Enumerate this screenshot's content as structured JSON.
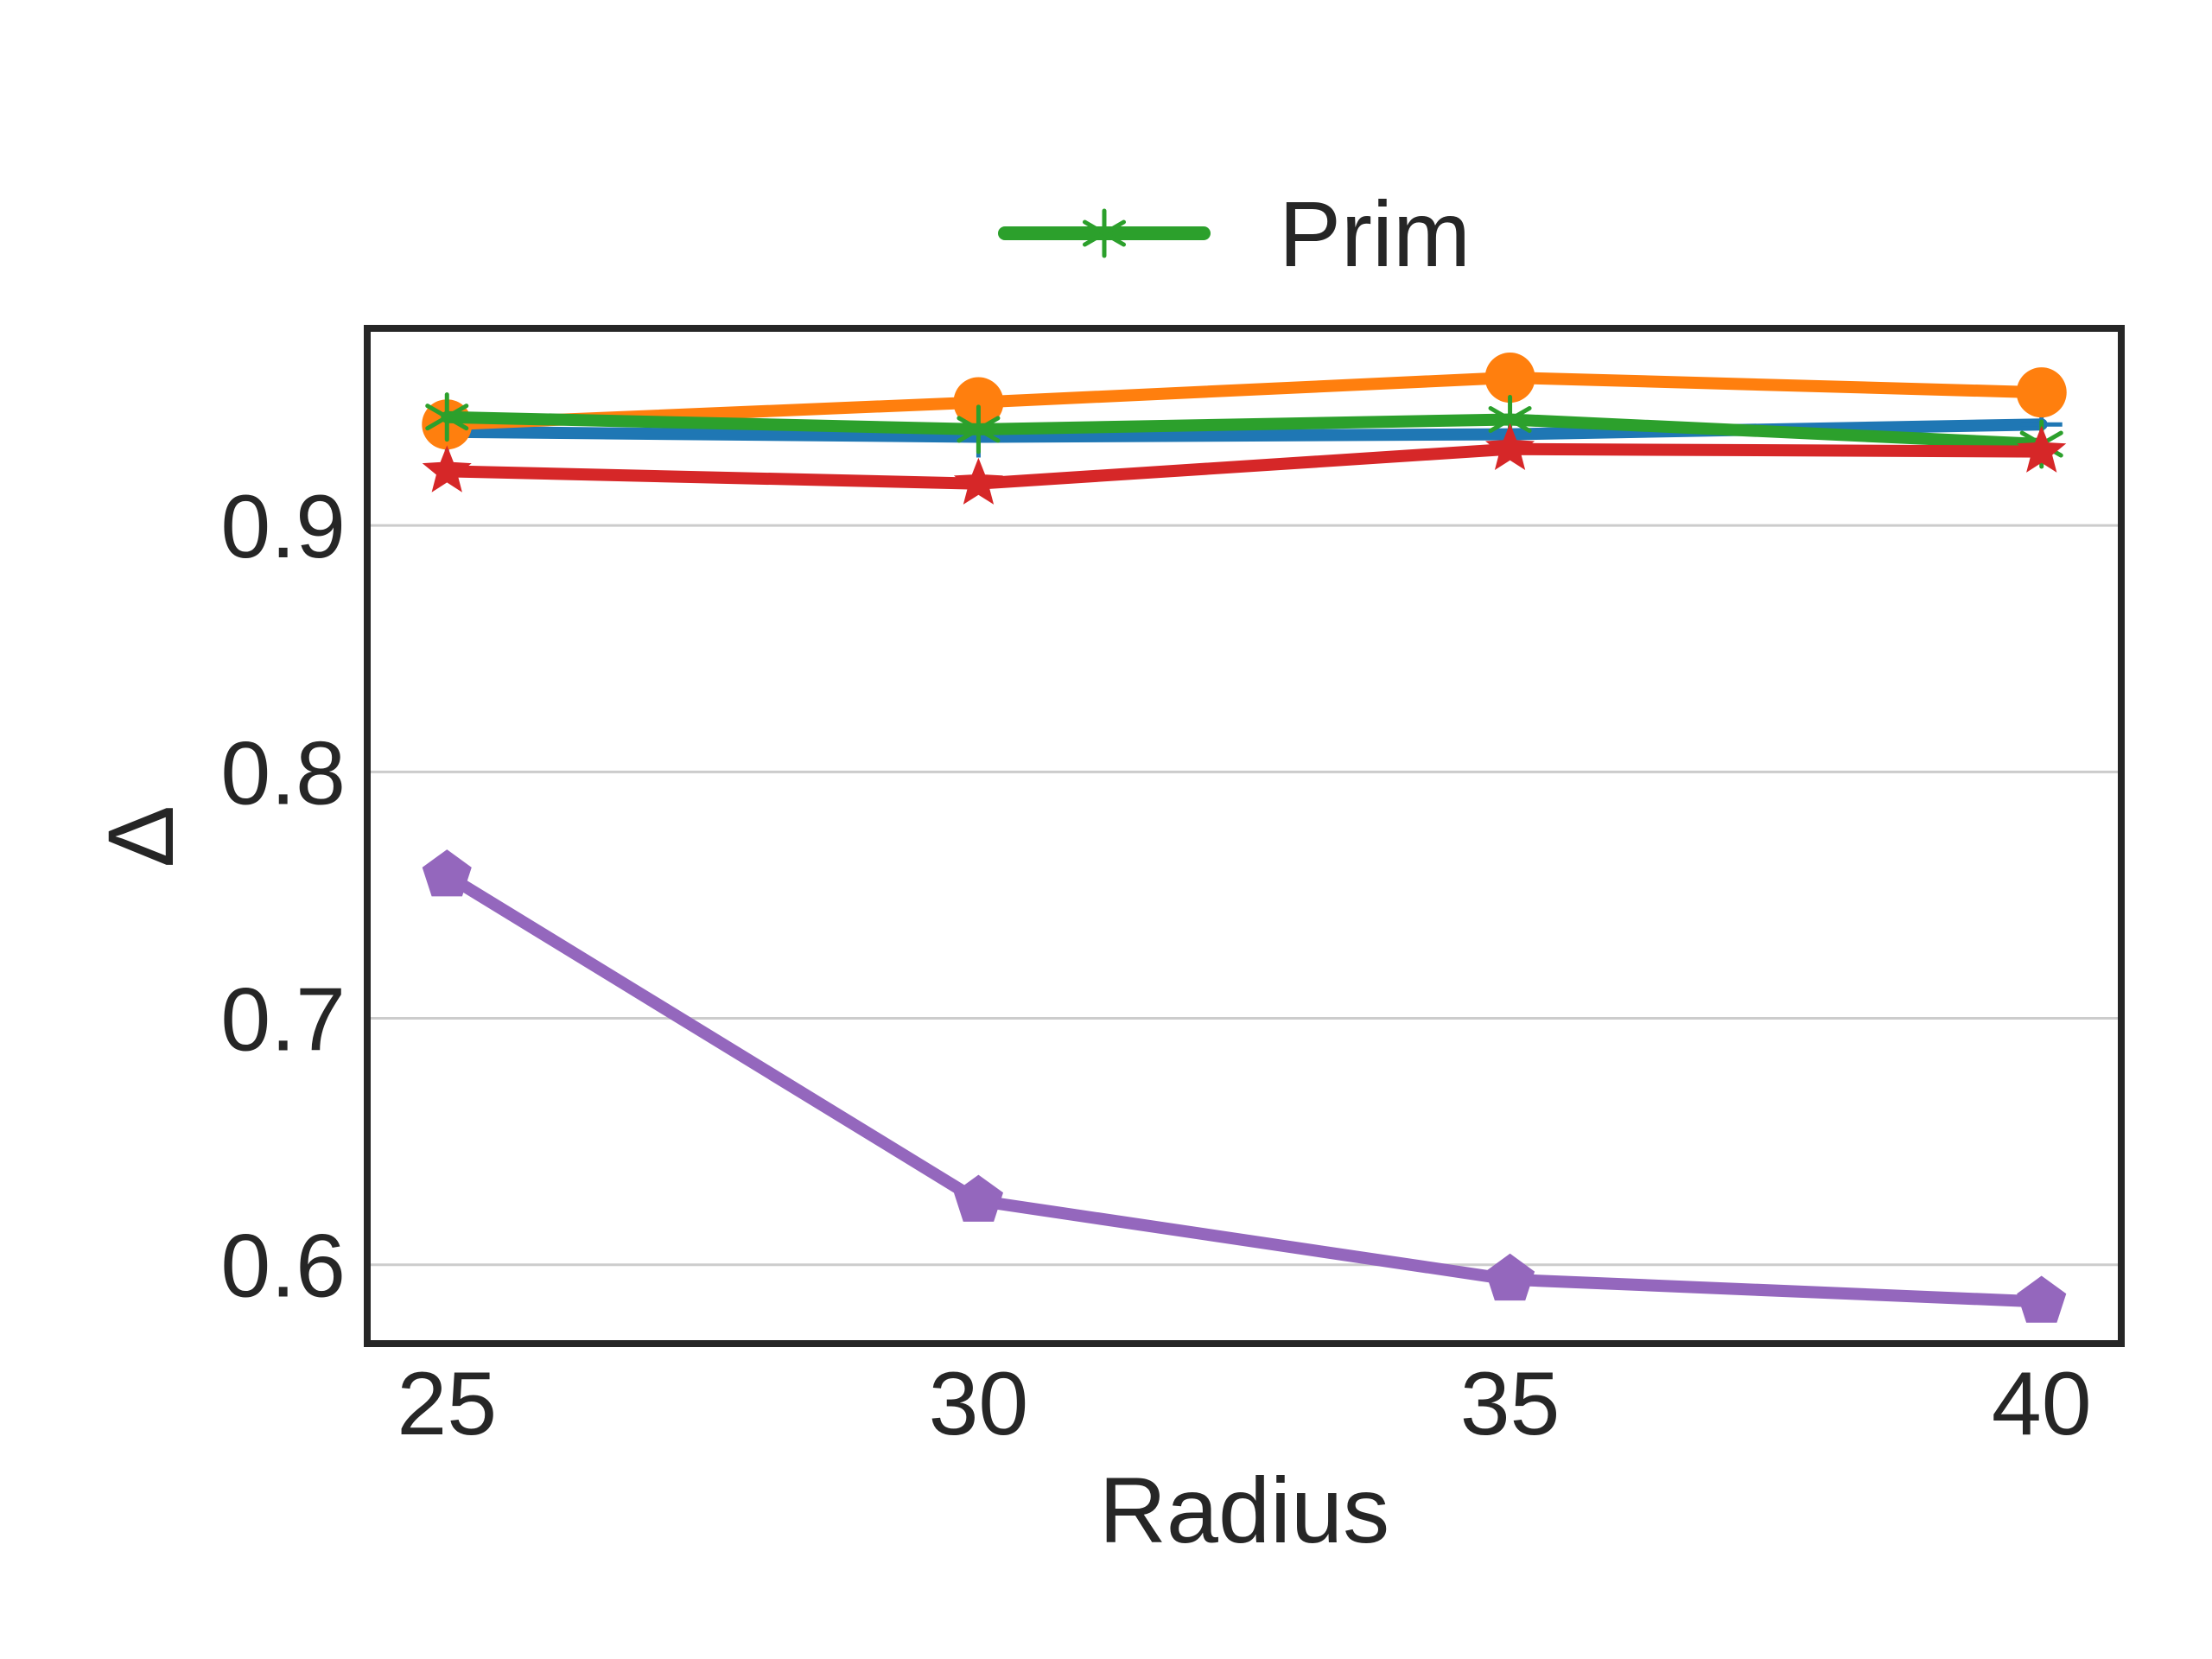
{
  "chart_data": {
    "type": "line",
    "title": "",
    "xlabel": "Radius",
    "ylabel": "Δ",
    "x": [
      25,
      30,
      35,
      40
    ],
    "x_ticks": [
      "25",
      "30",
      "35",
      "40"
    ],
    "y_ticks": [
      "0.6",
      "0.7",
      "0.8",
      "0.9"
    ],
    "y_tick_values": [
      0.6,
      0.7,
      0.8,
      0.9
    ],
    "xlim": [
      24.25,
      40.75
    ],
    "ylim": [
      0.568,
      0.98
    ],
    "grid": "horizontal",
    "legend_position": "top-center",
    "legend": [
      {
        "name": "Prim",
        "color": "#2ca02c",
        "marker": "star-asterisk"
      }
    ],
    "series": [
      {
        "color": "#1f77b4",
        "marker": "plus",
        "values": [
          0.938,
          0.936,
          0.937,
          0.941
        ]
      },
      {
        "color": "#ff7f0e",
        "marker": "circle",
        "values": [
          0.941,
          0.95,
          0.96,
          0.954
        ]
      },
      {
        "name": "Prim",
        "color": "#2ca02c",
        "marker": "star-asterisk",
        "values": [
          0.944,
          0.939,
          0.943,
          0.933
        ]
      },
      {
        "color": "#d62728",
        "marker": "star",
        "values": [
          0.922,
          0.917,
          0.931,
          0.93
        ]
      },
      {
        "color": "#9467bd",
        "marker": "pentagon",
        "values": [
          0.758,
          0.626,
          0.594,
          0.585
        ]
      }
    ]
  }
}
